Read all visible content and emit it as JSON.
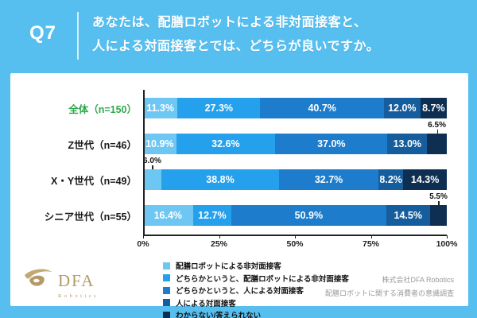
{
  "header": {
    "question_number": "Q7",
    "question_line1": "あなたは、配膳ロボットによる非対面接客と、",
    "question_line2": "人による対面接客とでは、どちらが良いですか。"
  },
  "chart_data": {
    "type": "bar",
    "orientation": "horizontal-stacked",
    "unit": "%",
    "xlim": [
      0,
      100
    ],
    "x_ticks": [
      "0%",
      "25%",
      "50%",
      "75%",
      "100%"
    ],
    "grid": false,
    "legend_position": "bottom",
    "categories": [
      "全体（n=150）",
      "Z世代（n=46）",
      "X・Y世代（n=49）",
      "シニア世代（n=55）"
    ],
    "category_label_colors": [
      "#2FA84D",
      "#1a1a1a",
      "#1a1a1a",
      "#1a1a1a"
    ],
    "series": [
      {
        "name": "配膳ロボットによる非対面接客",
        "color": "#6EC6F3",
        "values": [
          11.3,
          10.9,
          6.0,
          16.4
        ]
      },
      {
        "name": "どちらかというと、配膳ロボットによる非対面接客",
        "color": "#25A0EC",
        "values": [
          27.3,
          32.6,
          38.8,
          12.7
        ]
      },
      {
        "name": "どちらかというと、人による対面接客",
        "color": "#1D7CCB",
        "values": [
          40.7,
          37.0,
          32.7,
          50.9
        ]
      },
      {
        "name": "人による対面接客",
        "color": "#155D9C",
        "values": [
          12.0,
          13.0,
          8.2,
          14.5
        ]
      },
      {
        "name": "わからない/答えられない",
        "color": "#0E2F52",
        "values": [
          8.7,
          6.5,
          14.3,
          5.5
        ]
      }
    ],
    "outside_labels": [
      {
        "category_index": 1,
        "series_index": 4,
        "text": "6.5%"
      },
      {
        "category_index": 2,
        "series_index": 0,
        "text": "6.0%"
      },
      {
        "category_index": 3,
        "series_index": 4,
        "text": "5.5%"
      }
    ]
  },
  "footer": {
    "logo_text": "DFA",
    "logo_subtext": "Robotics",
    "source_line1": "株式会社DFA Robotics",
    "source_line2": "配膳ロボットに関する消費者の意識調査"
  }
}
